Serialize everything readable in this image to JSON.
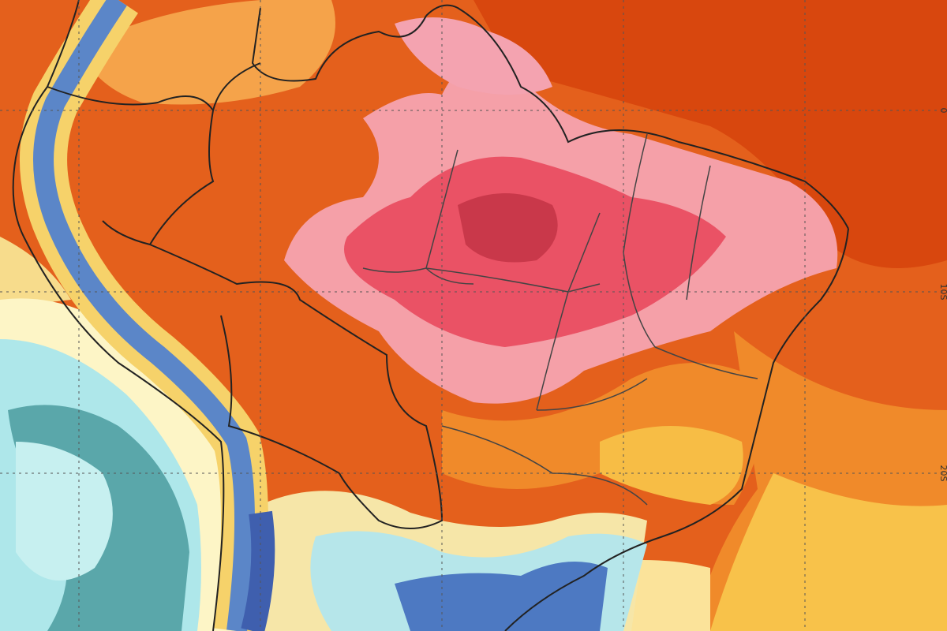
{
  "map": {
    "latitude_labels": [
      "0",
      "10S",
      "20S"
    ]
  }
}
